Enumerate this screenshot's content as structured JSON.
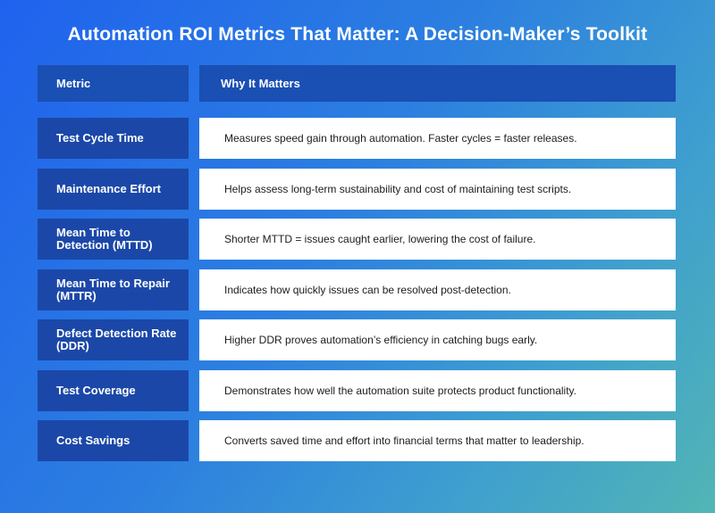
{
  "title": "Automation ROI Metrics That Matter: A Decision-Maker’s Toolkit",
  "table": {
    "header": {
      "metric": "Metric",
      "why": "Why It Matters"
    },
    "rows": [
      {
        "metric": "Test Cycle Time",
        "why": "Measures speed gain through automation. Faster cycles = faster releases."
      },
      {
        "metric": "Maintenance Effort",
        "why": "Helps assess long-term sustainability and cost of maintaining test scripts."
      },
      {
        "metric": "Mean Time to Detection (MTTD)",
        "why": "Shorter MTTD = issues caught earlier, lowering the cost of failure."
      },
      {
        "metric": "Mean Time to Repair (MTTR)",
        "why": "Indicates how quickly issues can be resolved post-detection."
      },
      {
        "metric": "Defect Detection Rate (DDR)",
        "why": "Higher DDR proves automation’s efficiency in catching bugs early."
      },
      {
        "metric": "Test Coverage",
        "why": "Demonstrates how well the automation suite protects product functionality."
      },
      {
        "metric": "Cost Savings",
        "why": "Converts saved time and effort into financial terms that matter to leadership."
      }
    ]
  },
  "colors": {
    "background_start": "#1f62ee",
    "background_end": "#52b5b4",
    "header_fill": "#1a4fb3",
    "metric_fill": "#1b48a8",
    "why_fill": "#ffffff"
  }
}
